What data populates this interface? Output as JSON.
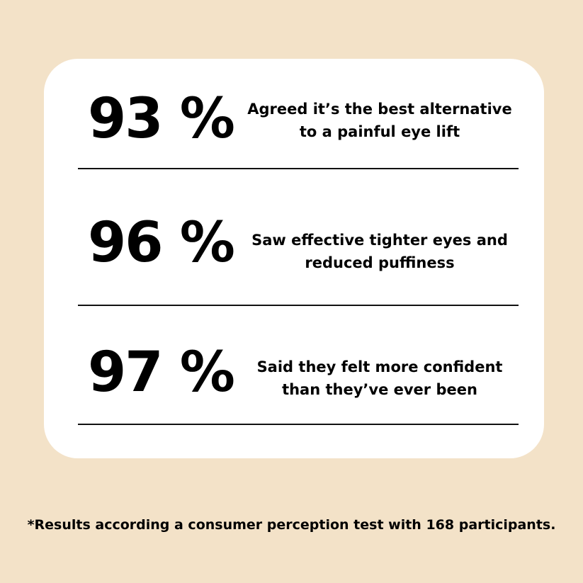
{
  "stats": [
    {
      "value": "93 %",
      "text": "Agreed it’s the best alternative to a painful eye lift"
    },
    {
      "value": "96 %",
      "text": "Saw effective tighter eyes and reduced puffiness"
    },
    {
      "value": "97 %",
      "text": "Said they felt more confident than they’ve ever been"
    }
  ],
  "footnote": "*Results according a consumer perception test with 168 participants."
}
